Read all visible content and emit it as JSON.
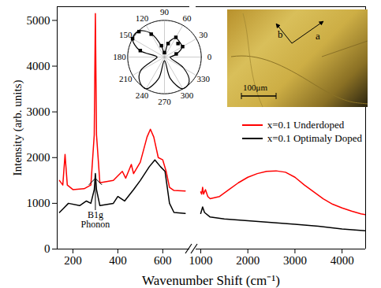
{
  "chart_data": {
    "type": "line",
    "x_label": "Wavenumber Shift (cm⁻¹)",
    "y_label": "Intensity (arb. units)",
    "xlim": [
      [
        130,
        720
      ],
      [
        900,
        4500
      ]
    ],
    "xticks": [
      200,
      400,
      600,
      1000,
      2000,
      3000,
      4000
    ],
    "ylim": [
      0,
      5300
    ],
    "yticks": [
      0,
      1000,
      2000,
      3000,
      4000,
      5000
    ],
    "legend": "right",
    "series": [
      {
        "name": "x=0.1 Underdoped",
        "color": "#ff0000",
        "x": [
          140,
          155,
          165,
          175,
          200,
          250,
          280,
          295,
          300,
          305,
          320,
          380,
          420,
          435,
          460,
          470,
          500,
          530,
          545,
          560,
          580,
          600,
          615,
          630,
          650,
          700,
          1000,
          1020,
          1040,
          1060,
          1100,
          1150,
          1200,
          1400,
          1600,
          1800,
          2000,
          2200,
          2400,
          2600,
          2800,
          3000,
          3200,
          3400,
          3600,
          3800,
          4000,
          4200,
          4400,
          4500
        ],
        "values": [
          1500,
          1400,
          2070,
          1400,
          1300,
          1320,
          1400,
          2500,
          5150,
          2500,
          1450,
          1500,
          1700,
          1550,
          1850,
          1650,
          1900,
          2450,
          2620,
          2450,
          2000,
          1950,
          1700,
          1350,
          1280,
          1270,
          1250,
          1200,
          1350,
          1200,
          1300,
          1150,
          1100,
          1150,
          1300,
          1450,
          1570,
          1650,
          1700,
          1710,
          1680,
          1570,
          1400,
          1250,
          1100,
          980,
          900,
          830,
          770,
          750
        ]
      },
      {
        "name": "x=0.1 Optimaly Doped",
        "color": "#000000",
        "x": [
          140,
          160,
          180,
          230,
          260,
          280,
          295,
          300,
          305,
          320,
          380,
          400,
          430,
          470,
          500,
          540,
          565,
          590,
          610,
          630,
          650,
          700,
          1000,
          1040,
          1080,
          1200,
          1500,
          2000,
          2500,
          3000,
          3500,
          4000,
          4500
        ],
        "values": [
          800,
          900,
          1000,
          950,
          1050,
          1000,
          1300,
          1650,
          1300,
          950,
          1000,
          1150,
          1050,
          1300,
          1500,
          1800,
          1950,
          1800,
          1700,
          1000,
          800,
          780,
          780,
          920,
          800,
          700,
          660,
          620,
          580,
          540,
          500,
          440,
          400
        ]
      }
    ],
    "annotation": {
      "text": [
        "B1g",
        "Phonon"
      ],
      "x": 300,
      "y": 1650
    },
    "polar_inset": {
      "angle_ticks": [
        0,
        30,
        60,
        90,
        120,
        150,
        180,
        210,
        240,
        270,
        300,
        330
      ],
      "rlim": [
        0,
        1
      ],
      "curve": {
        "angle": [
          0,
          15,
          30,
          45,
          60,
          75,
          90,
          105,
          120,
          135,
          150,
          165,
          180,
          195,
          210,
          225,
          240,
          255,
          270,
          285,
          300,
          315,
          330,
          345
        ],
        "r": [
          0.15,
          0.35,
          0.55,
          0.58,
          0.6,
          0.4,
          0.1,
          0.3,
          0.75,
          1.0,
          1.0,
          0.7,
          0.2,
          0.3,
          0.75,
          0.95,
          1.0,
          0.6,
          0.1,
          0.6,
          1.0,
          0.95,
          0.6,
          0.2
        ]
      },
      "points": {
        "angle": [
          15,
          30,
          45,
          60,
          75,
          90,
          105,
          120,
          135,
          150,
          165
        ],
        "r": [
          0.33,
          0.57,
          0.52,
          0.62,
          0.38,
          0.12,
          0.32,
          0.72,
          0.98,
          1.0,
          0.68
        ]
      }
    },
    "photo_inset": {
      "labels": [
        "b",
        "a"
      ],
      "scale_bar": "100μm"
    }
  }
}
